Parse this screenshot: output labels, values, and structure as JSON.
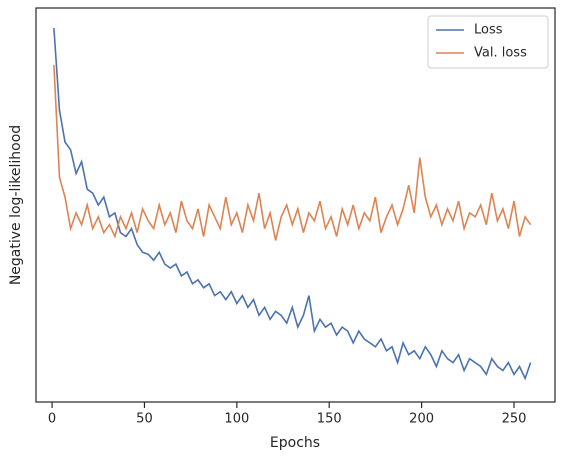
{
  "chart_data": {
    "type": "line",
    "xlabel": "Epochs",
    "ylabel": "Negative log-likelihood",
    "x": [
      1,
      4,
      7,
      10,
      13,
      16,
      19,
      22,
      25,
      28,
      31,
      34,
      37,
      40,
      43,
      46,
      49,
      52,
      55,
      58,
      61,
      64,
      67,
      70,
      73,
      76,
      79,
      82,
      85,
      88,
      91,
      94,
      97,
      100,
      103,
      106,
      109,
      112,
      115,
      118,
      121,
      124,
      127,
      130,
      133,
      136,
      139,
      142,
      145,
      148,
      151,
      154,
      157,
      160,
      163,
      166,
      169,
      172,
      175,
      178,
      181,
      184,
      187,
      190,
      193,
      196,
      199,
      202,
      205,
      208,
      211,
      214,
      217,
      220,
      223,
      226,
      229,
      232,
      235,
      238,
      241,
      244,
      247,
      250,
      253,
      256,
      259
    ],
    "series": [
      {
        "name": "Loss",
        "color": "#4c72b0",
        "values": [
          94.9,
          74,
          66,
          64,
          58,
          61,
          54,
          53,
          50,
          52,
          47,
          48,
          43,
          42,
          44,
          40,
          38,
          37.5,
          36,
          38,
          35,
          34,
          35,
          32,
          33,
          30,
          31,
          29,
          30,
          27,
          28,
          26,
          28,
          25,
          27,
          24,
          26,
          22,
          24,
          21,
          23,
          22,
          20,
          24,
          19,
          22,
          27,
          18,
          21,
          19,
          20,
          17,
          19,
          18,
          15,
          18,
          16,
          15,
          14,
          16,
          13,
          14,
          10,
          15,
          12,
          13,
          11,
          14,
          12,
          9,
          13,
          11,
          10,
          12,
          8,
          11,
          10,
          9,
          7,
          11,
          9,
          8,
          10,
          7,
          9,
          6,
          10
        ]
      },
      {
        "name": "Val. loss",
        "color": "#dd8452",
        "values": [
          85.5,
          57,
          52,
          44,
          48,
          45,
          50,
          44,
          47,
          43,
          45,
          42,
          47,
          44,
          48,
          43,
          49,
          46,
          44,
          50,
          45,
          48,
          43,
          51,
          46,
          44,
          49,
          42,
          50,
          47,
          44,
          52,
          45,
          48,
          43,
          50,
          46,
          53,
          44,
          48,
          41,
          47,
          50,
          45,
          49,
          43,
          48,
          46,
          51,
          44,
          47,
          42,
          49,
          45,
          50,
          44,
          48,
          46,
          52,
          43,
          47,
          50,
          45,
          49,
          55,
          48,
          62,
          52,
          47,
          50,
          45,
          49,
          46,
          51,
          44,
          48,
          47,
          50,
          45,
          53,
          46,
          49,
          44,
          51,
          42,
          47,
          45
        ]
      }
    ],
    "xlim": [
      -8.7,
      272.2
    ],
    "xticks": [
      0,
      50,
      100,
      150,
      200,
      250
    ],
    "ylim": [
      0,
      100
    ],
    "legend": "upper right"
  }
}
